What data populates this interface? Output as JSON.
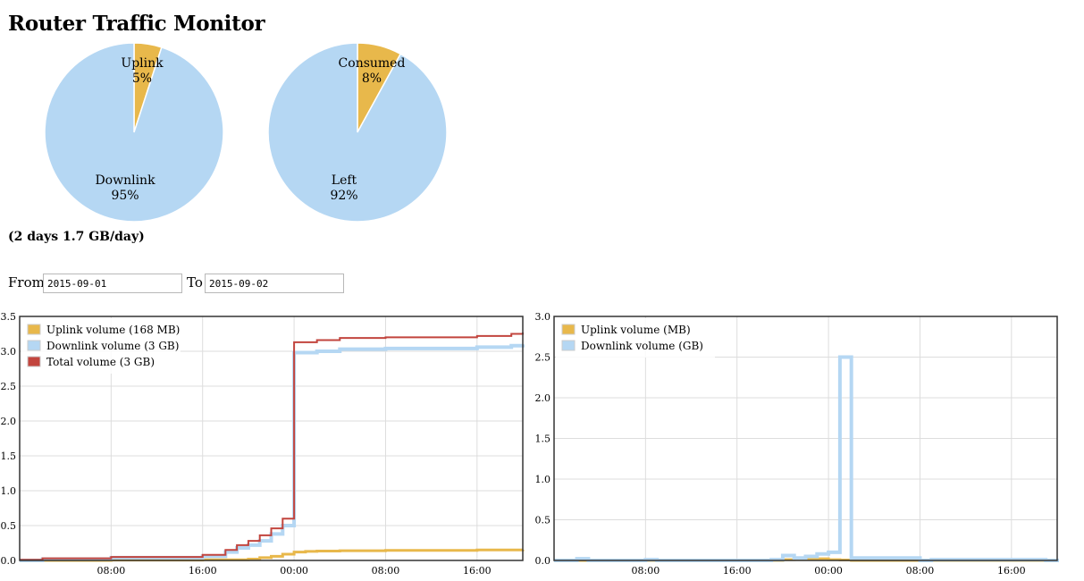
{
  "title": "Router Traffic Monitor",
  "colors": {
    "uplink": "#e8b84b",
    "downlink": "#b5d7f3",
    "total": "#c2453e",
    "grid": "#dddddd"
  },
  "pies": [
    {
      "slices": [
        {
          "label": "Uplink",
          "percent": 5,
          "pct_text": "5%",
          "color": "#e8b84b"
        },
        {
          "label": "Downlink",
          "percent": 95,
          "pct_text": "95%",
          "color": "#b5d7f3"
        }
      ]
    },
    {
      "slices": [
        {
          "label": "Consumed",
          "percent": 8,
          "pct_text": "8%",
          "color": "#e8b84b"
        },
        {
          "label": "Left",
          "percent": 92,
          "pct_text": "92%",
          "color": "#b5d7f3"
        }
      ]
    }
  ],
  "summary": "(2 days 1.7 GB/day)",
  "range": {
    "from_label": "From",
    "from_value": "2015-09-01",
    "to_label": "To",
    "to_value": "2015-09-02"
  },
  "chart_data": [
    {
      "type": "line",
      "legend_placement": "top-left",
      "grid": true,
      "x_ticks": [
        "08:00",
        "16:00",
        "00:00",
        "08:00",
        "16:00"
      ],
      "x_tick_hours": [
        8,
        16,
        24,
        32,
        40
      ],
      "xlim_hours": [
        0,
        44
      ],
      "ylim": [
        0,
        3.5
      ],
      "y_ticks": [
        "0.0",
        "0.5",
        "1.0",
        "1.5",
        "2.0",
        "2.5",
        "3.0",
        "3.5"
      ],
      "y_tick_values": [
        0,
        0.5,
        1.0,
        1.5,
        2.0,
        2.5,
        3.0,
        3.5
      ],
      "series": [
        {
          "name": "Uplink volume (168 MB)",
          "color": "#e8b84b",
          "width": 3,
          "x": [
            0,
            8,
            16,
            20,
            21,
            22,
            23,
            24,
            25,
            26,
            28,
            32,
            40,
            44
          ],
          "y": [
            0.0,
            0.005,
            0.01,
            0.02,
            0.04,
            0.06,
            0.09,
            0.12,
            0.13,
            0.135,
            0.14,
            0.145,
            0.15,
            0.155
          ]
        },
        {
          "name": "Downlink volume (3 GB)",
          "color": "#b5d7f3",
          "width": 4,
          "x": [
            0,
            2,
            8,
            16,
            18,
            19,
            20,
            21,
            22,
            23,
            24,
            26,
            28,
            32,
            40,
            43,
            44
          ],
          "y": [
            0.0,
            0.02,
            0.04,
            0.06,
            0.12,
            0.18,
            0.22,
            0.28,
            0.38,
            0.5,
            2.98,
            3.0,
            3.03,
            3.04,
            3.06,
            3.08,
            3.1
          ]
        },
        {
          "name": "Total volume (3 GB)",
          "color": "#c2453e",
          "width": 2,
          "x": [
            0,
            2,
            8,
            16,
            18,
            19,
            20,
            21,
            22,
            23,
            24,
            26,
            28,
            32,
            40,
            43,
            44
          ],
          "y": [
            0.01,
            0.03,
            0.05,
            0.08,
            0.15,
            0.22,
            0.28,
            0.36,
            0.46,
            0.6,
            3.13,
            3.16,
            3.19,
            3.2,
            3.22,
            3.25,
            3.27
          ]
        }
      ]
    },
    {
      "type": "bar",
      "legend_placement": "top-left",
      "grid": true,
      "x_ticks": [
        "08:00",
        "16:00",
        "00:00",
        "08:00",
        "16:00"
      ],
      "x_tick_hours": [
        8,
        16,
        24,
        32,
        40
      ],
      "xlim_hours": [
        0,
        44
      ],
      "ylim": [
        0,
        3.0
      ],
      "y_ticks": [
        "0.0",
        "0.5",
        "1.0",
        "1.5",
        "2.0",
        "2.5",
        "3.0"
      ],
      "y_tick_values": [
        0,
        0.5,
        1.0,
        1.5,
        2.0,
        2.5,
        3.0
      ],
      "series": [
        {
          "name": "Uplink volume (MB)",
          "color": "#e8b84b",
          "width": 3,
          "x": [
            0,
            20,
            21,
            22,
            23,
            24,
            25,
            26,
            44
          ],
          "y": [
            0.0,
            0.01,
            0.02,
            0.02,
            0.02,
            0.01,
            0.005,
            0.0,
            0.0
          ]
        },
        {
          "name": "Downlink volume (GB)",
          "color": "#b5d7f3",
          "width": 4,
          "x": [
            0,
            2,
            3,
            8,
            9,
            19,
            20,
            21,
            22,
            23,
            24,
            25,
            26,
            32,
            33,
            43,
            44
          ],
          "y": [
            0.0,
            0.02,
            0.0,
            0.01,
            0.0,
            0.01,
            0.06,
            0.03,
            0.05,
            0.08,
            0.1,
            2.5,
            0.03,
            0.0,
            0.01,
            0.0,
            0.02
          ]
        }
      ]
    }
  ]
}
